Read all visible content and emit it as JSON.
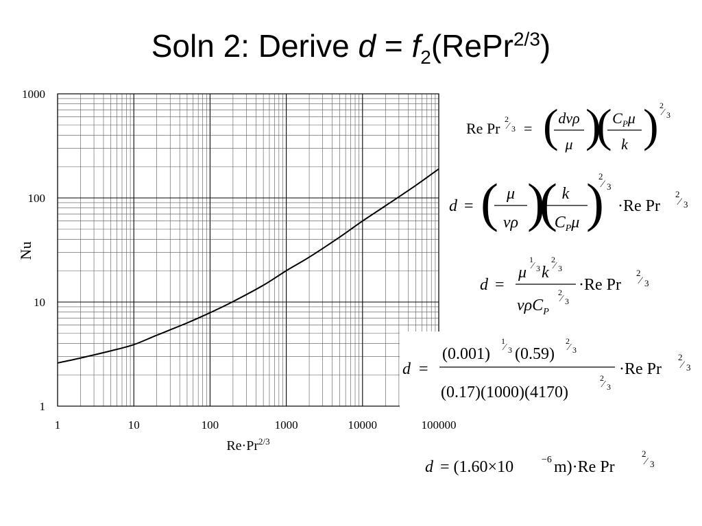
{
  "slide": {
    "title_prefix": "Soln 2: Derive ",
    "title_var": "d",
    "title_eq": " = ",
    "title_func": "f",
    "title_func_sub": "2",
    "title_arg": "(RePr",
    "title_arg_sup": "2/3",
    "title_close": ")"
  },
  "chart_data": {
    "type": "line",
    "x_scale": "log",
    "y_scale": "log",
    "xlim": [
      1,
      100000
    ],
    "ylim": [
      1,
      1000
    ],
    "x_ticks": [
      "1",
      "10",
      "100",
      "1000",
      "10000",
      "100000"
    ],
    "y_ticks": [
      "1",
      "10",
      "100",
      "1000"
    ],
    "xlabel": "Re·Pr",
    "xlabel_sup": "2/3",
    "ylabel": "Nu",
    "grid": true,
    "line_color": "#000000",
    "series": [
      {
        "x": [
          1,
          2,
          5,
          10,
          20,
          50,
          100,
          200,
          500,
          1000,
          2000,
          5000,
          10000,
          20000,
          50000,
          100000
        ],
        "y": [
          2.6,
          2.9,
          3.4,
          3.9,
          4.8,
          6.3,
          7.9,
          10.1,
          14.5,
          20,
          27,
          42,
          60,
          84,
          132,
          190
        ]
      }
    ]
  },
  "equations": {
    "e1": "Re Pr^(2/3) = (dvρ/μ)(C_P μ/k)^(2/3)",
    "e2": "d = (μ/vρ)(k/C_P μ)^(2/3) · Re Pr^(2/3)",
    "e3": "d = μ^(1/3) k^(2/3) / (v ρ C_P^(2/3)) · Re Pr^(2/3)",
    "e4": "d = (0.001)^(1/3)(0.59)^(2/3) / ((0.17)(1000)(4170)^(2/3)) · Re Pr^(2/3)",
    "e5": "d = (1.60×10^−6 m) · Re Pr^(2/3)"
  }
}
